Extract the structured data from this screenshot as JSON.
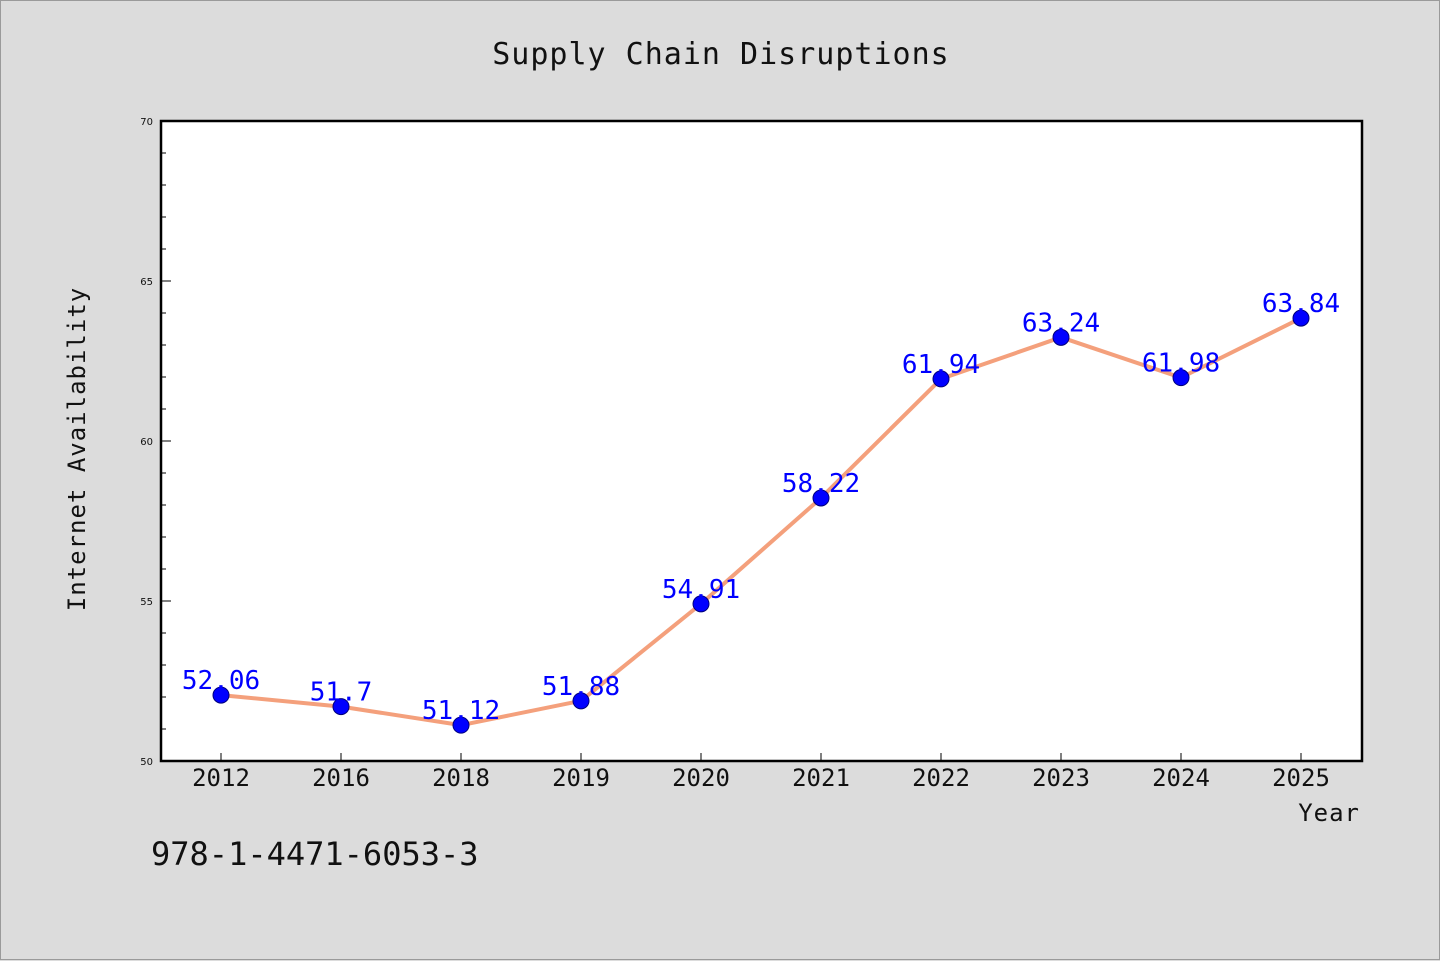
{
  "chart_data": {
    "type": "line",
    "title": "Supply Chain Disruptions",
    "xlabel": "Year",
    "ylabel": "Internet Availability",
    "categories": [
      "2012",
      "2016",
      "2018",
      "2019",
      "2020",
      "2021",
      "2022",
      "2023",
      "2024",
      "2025"
    ],
    "series": [
      {
        "values": [
          52.06,
          51.7,
          51.12,
          51.88,
          54.91,
          58.22,
          61.94,
          63.24,
          61.98,
          63.84
        ],
        "data_labels": [
          "52.06",
          "51.7",
          "51.12",
          "51.88",
          "54.91",
          "58.22",
          "61.94",
          "63.24",
          "61.98",
          "63.84"
        ]
      }
    ],
    "ylim": [
      50,
      70
    ],
    "yticks": [
      "50",
      "55",
      "60",
      "65",
      "70"
    ],
    "grid": false,
    "legend": "none"
  },
  "footer": {
    "isbn": "978-1-4471-6053-3"
  },
  "colors": {
    "background": "#dcdcdc",
    "plot_background": "#ffffff",
    "line": "#f4a07c",
    "marker": "#0000ff",
    "data_label": "#0000ff"
  }
}
